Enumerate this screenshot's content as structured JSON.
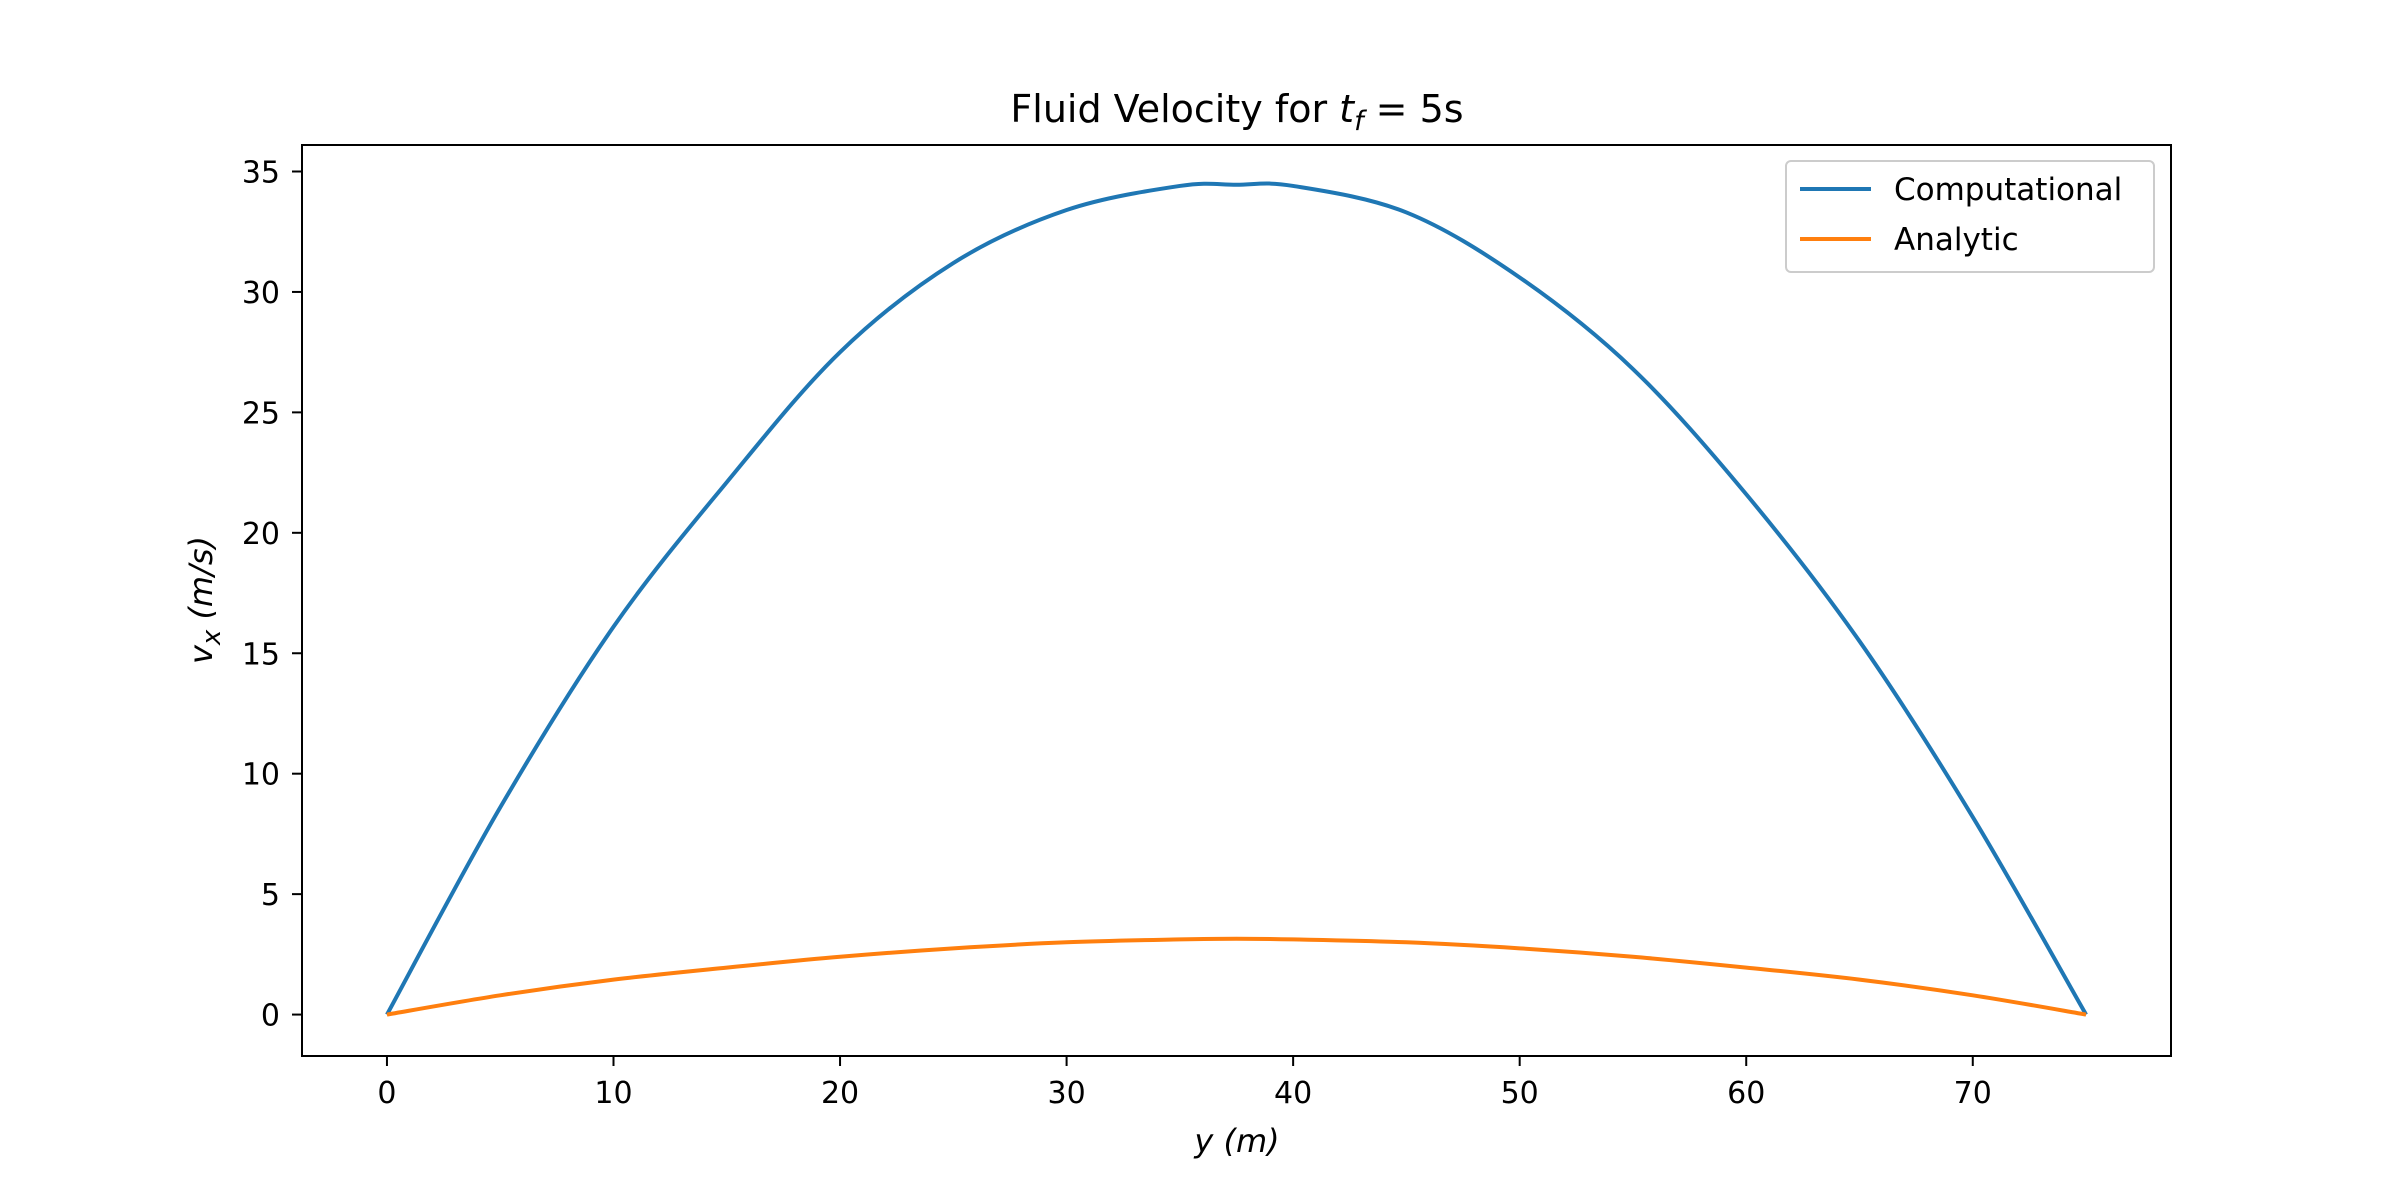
{
  "chart_data": {
    "type": "line",
    "title": {
      "prefix": "Fluid Velocity for ",
      "var": "t",
      "sub": "f",
      "suffix": " = 5s"
    },
    "xlabel": {
      "var": "y",
      "unit": " (m)"
    },
    "ylabel": {
      "var": "v",
      "sub": "x",
      "unit": " (m/s)"
    },
    "xlim": [
      -3.75,
      78.75
    ],
    "ylim": [
      -1.72,
      36.1
    ],
    "xticks": [
      0,
      10,
      20,
      30,
      40,
      50,
      60,
      70
    ],
    "yticks": [
      0,
      5,
      10,
      15,
      20,
      25,
      30,
      35
    ],
    "grid": false,
    "legend_position": "top-right",
    "series": [
      {
        "name": "Computational",
        "color": "#1f77b4",
        "x": [
          0,
          5,
          10,
          15,
          20,
          25,
          30,
          35,
          37.5,
          40,
          45,
          50,
          55,
          60,
          65,
          70,
          75
        ],
        "y": [
          0,
          8.6,
          16.1,
          22.1,
          27.5,
          31.2,
          33.4,
          34.4,
          34.45,
          34.4,
          33.3,
          30.6,
          26.8,
          21.6,
          15.5,
          8.2,
          0
        ]
      },
      {
        "name": "Analytic",
        "color": "#ff7f0e",
        "x": [
          0,
          5,
          10,
          15,
          20,
          25,
          30,
          35,
          37.5,
          40,
          45,
          50,
          55,
          60,
          65,
          70,
          75
        ],
        "y": [
          0,
          0.8,
          1.45,
          1.95,
          2.4,
          2.75,
          3.0,
          3.12,
          3.15,
          3.12,
          3.0,
          2.75,
          2.4,
          1.95,
          1.45,
          0.8,
          0
        ]
      }
    ]
  }
}
